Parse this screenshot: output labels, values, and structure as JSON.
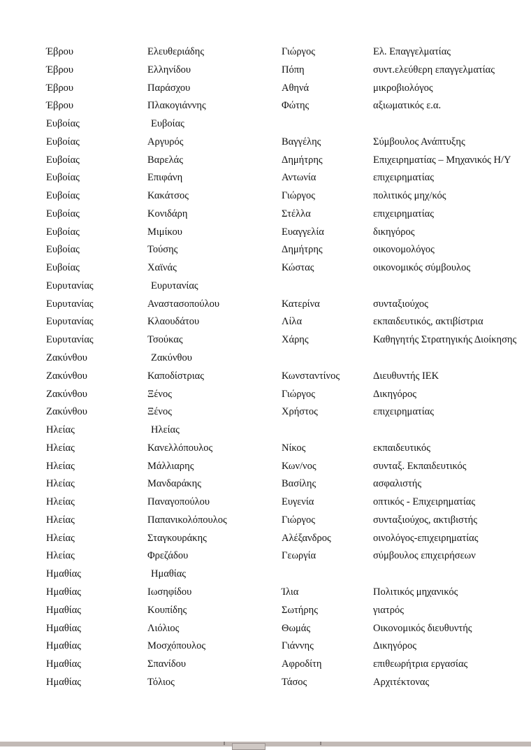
{
  "document": {
    "rows": [
      [
        "Έβρου",
        "Ελευθεριάδης",
        "Γιώργος",
        "Ελ. Επαγγελματίας"
      ],
      [
        "Έβρου",
        "Ελληνίδου",
        "Πόπη",
        "συντ.ελεύθερη επαγγελματίας"
      ],
      [
        "Έβρου",
        "Παράσχου",
        "Αθηνά",
        "μικροβιολόγος"
      ],
      [
        "Έβρου",
        "Πλακογιάννης",
        "Φώτης",
        "αξιωματικός ε.α."
      ],
      [
        "Ευβοίας",
        "Ευβοίας",
        "",
        ""
      ],
      [
        "Ευβοίας",
        "Αργυρός",
        "Βαγγέλης",
        "Σύμβουλος Ανάπτυξης"
      ],
      [
        "Ευβοίας",
        "Βαρελάς",
        "Δημήτρης",
        "Επιχειρηματίας – Μηχανικός Η/Υ"
      ],
      [
        "Ευβοίας",
        "Επιφάνη",
        "Αντωνία",
        "επιχειρηματίας"
      ],
      [
        "Ευβοίας",
        "Κακάτσος",
        "Γιώργος",
        "πολιτικός μηχ/κός"
      ],
      [
        "Ευβοίας",
        "Κονιδάρη",
        "Στέλλα",
        "επιχειρηματίας"
      ],
      [
        "Ευβοίας",
        "Μιμίκου",
        "Ευαγγελία",
        "δικηγόρος"
      ],
      [
        "Ευβοίας",
        "Τούσης",
        "Δημήτρης",
        "οικονομολόγος"
      ],
      [
        "Ευβοίας",
        "Χαϊνάς",
        "Κώστας",
        "οικονομικός σύμβουλος"
      ],
      [
        "Ευρυτανίας",
        "Ευρυτανίας",
        "",
        ""
      ],
      [
        "Ευρυτανίας",
        "Αναστασοπούλου",
        "Κατερίνα",
        "συνταξιούχος"
      ],
      [
        "Ευρυτανίας",
        "Κλαουδάτου",
        "Λίλα",
        "εκπαιδευτικός, ακτιβίστρια"
      ],
      [
        "Ευρυτανίας",
        "Τσούκας",
        "Χάρης",
        "Καθηγητής Στρατηγικής Διοίκησης"
      ],
      [
        "Ζακύνθου",
        "Ζακύνθου",
        "",
        ""
      ],
      [
        "Ζακύνθου",
        "Καποδίστριας",
        "Κωνσταντίνος",
        "Διευθυντής ΙΕΚ"
      ],
      [
        "Ζακύνθου",
        "Ξένος",
        "Γιώργος",
        "Δικηγόρος"
      ],
      [
        "Ζακύνθου",
        "Ξένος",
        "Χρήστος",
        "επιχειρηματίας"
      ],
      [
        "Ηλείας",
        "Ηλείας",
        "",
        ""
      ],
      [
        "Ηλείας",
        "Κανελλόπουλος",
        "Νίκος",
        "εκπαιδευτικός"
      ],
      [
        "Ηλείας",
        "Μάλλιαρης",
        "Κων/νος",
        "συνταξ. Εκπαιδευτικός"
      ],
      [
        "Ηλείας",
        "Μανδαράκης",
        "Βασίλης",
        "ασφαλιστής"
      ],
      [
        "Ηλείας",
        "Παναγοπούλου",
        "Ευγενία",
        "οπτικός - Επιχειρηματίας"
      ],
      [
        "Ηλείας",
        "Παπανικολόπουλος",
        "Γιώργος",
        "συνταξιούχος, ακτιβιστής"
      ],
      [
        "Ηλείας",
        "Σταγκουράκης",
        "Αλέξανδρος",
        "οινολόγος-επιχειρηματίας"
      ],
      [
        "Ηλείας",
        "Φρεζάδου",
        "Γεωργία",
        "σύμβουλος επιχειρήσεων"
      ],
      [
        "Ημαθίας",
        "Ημαθίας",
        "",
        ""
      ],
      [
        "Ημαθίας",
        "Ιωσηφίδου",
        "Ίλια",
        "Πολιτικός μηχανικός"
      ],
      [
        "Ημαθίας",
        "Κουπίδης",
        "Σωτήρης",
        "γιατρός"
      ],
      [
        "Ημαθίας",
        "Λιόλιος",
        "Θωμάς",
        "Οικονομικός διευθυντής"
      ],
      [
        "Ημαθίας",
        "Μοσχόπουλος",
        "Γιάννης",
        "Δικηγόρος"
      ],
      [
        "Ημαθίας",
        "Σπανίδου",
        "Αφροδίτη",
        "επιθεωρήτρια εργασίας"
      ],
      [
        "Ημαθίας",
        "Τόλιος",
        "Τάσος",
        "Αρχιτέκτονας"
      ]
    ]
  }
}
